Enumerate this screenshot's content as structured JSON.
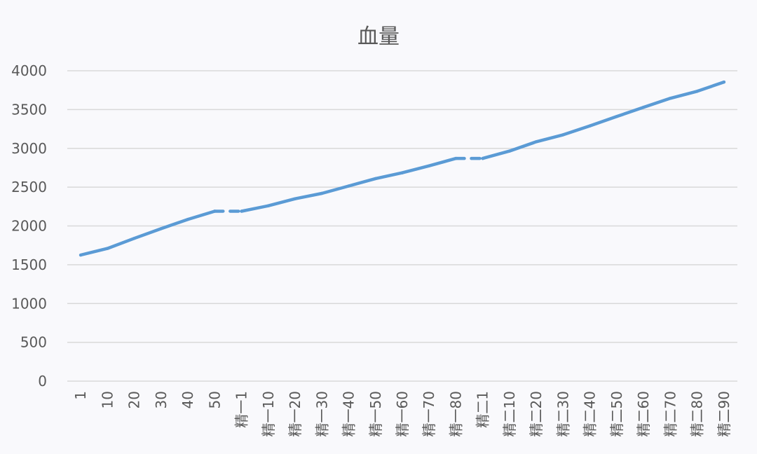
{
  "chart_data": {
    "type": "line",
    "title": "血量",
    "xlabel": "",
    "ylabel": "",
    "categories": [
      "1",
      "10",
      "20",
      "30",
      "40",
      "50",
      "精一1",
      "精一10",
      "精一20",
      "精一30",
      "精一40",
      "精一50",
      "精一60",
      "精一70",
      "精一80",
      "精二1",
      "精二10",
      "精二20",
      "精二30",
      "精二40",
      "精二50",
      "精二60",
      "精二70",
      "精二80",
      "精二90"
    ],
    "series": [
      {
        "values": [
          1625,
          1710,
          1840,
          1965,
          2085,
          2190,
          2190,
          2260,
          2350,
          2420,
          2515,
          2610,
          2685,
          2775,
          2870,
          2870,
          2965,
          3085,
          3175,
          3290,
          3410,
          3530,
          3645,
          3735,
          3855
        ],
        "color": "#5b9bd5",
        "dashed_segments": [
          [
            5,
            6
          ],
          [
            14,
            15
          ]
        ]
      }
    ],
    "ylim": [
      0,
      4000
    ],
    "yticks": [
      0,
      500,
      1000,
      1500,
      2000,
      2500,
      3000,
      3500,
      4000
    ],
    "grid": true,
    "legend": "none"
  }
}
